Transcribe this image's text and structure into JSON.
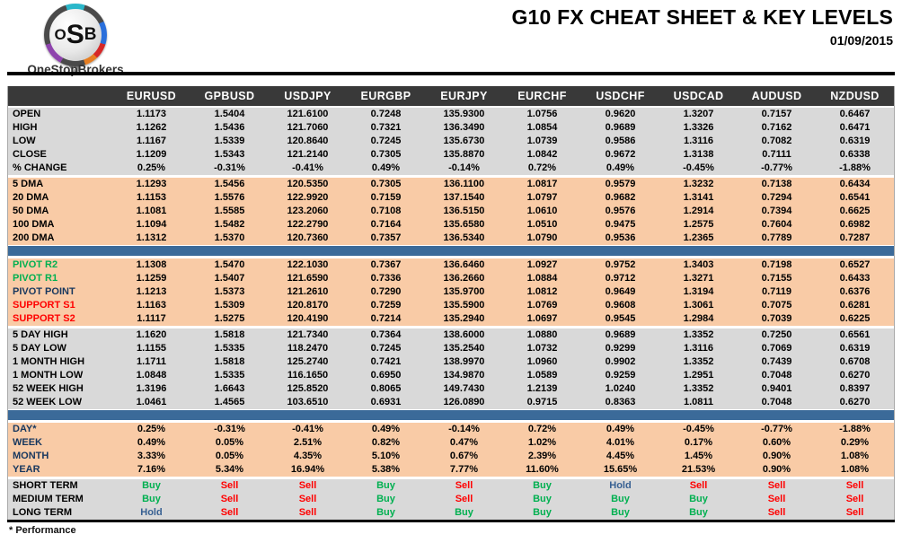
{
  "brand": {
    "logo_initials": "OSB",
    "logo_name": "OneStopBrokers"
  },
  "masthead": {
    "title": "G10 FX CHEAT SHEET & KEY LEVELS",
    "date": "01/09/2015"
  },
  "footer": {
    "note": "* Performance"
  },
  "colors": {
    "header_bg": "#393939",
    "gray_band": "#D9D9D9",
    "peach_band": "#F9CBA6",
    "blue_divider": "#3B6A99",
    "buy": "#00B050",
    "sell": "#FF0000",
    "hold": "#376092",
    "pivot_label_green": "#00B050",
    "support_label_red": "#FF0000",
    "navy_label": "#17375E"
  },
  "table": {
    "columns": [
      "EURUSD",
      "GPBUSD",
      "USDJPY",
      "EURGBP",
      "EURJPY",
      "EURCHF",
      "USDCHF",
      "USDCAD",
      "AUDUSD",
      "NZDUSD"
    ],
    "sections": [
      {
        "id": "ohlc",
        "tone": "gray",
        "rows": [
          {
            "label": "OPEN",
            "values": [
              "1.1173",
              "1.5404",
              "121.6100",
              "0.7248",
              "135.9300",
              "1.0756",
              "0.9620",
              "1.3207",
              "0.7157",
              "0.6467"
            ]
          },
          {
            "label": "HIGH",
            "values": [
              "1.1262",
              "1.5436",
              "121.7060",
              "0.7321",
              "136.3490",
              "1.0854",
              "0.9689",
              "1.3326",
              "0.7162",
              "0.6471"
            ]
          },
          {
            "label": "LOW",
            "values": [
              "1.1167",
              "1.5339",
              "120.8640",
              "0.7245",
              "135.6730",
              "1.0739",
              "0.9586",
              "1.3116",
              "0.7082",
              "0.6319"
            ]
          },
          {
            "label": "CLOSE",
            "values": [
              "1.1209",
              "1.5343",
              "121.2140",
              "0.7305",
              "135.8870",
              "1.0842",
              "0.9672",
              "1.3138",
              "0.7111",
              "0.6338"
            ]
          },
          {
            "label": "% CHANGE",
            "values": [
              "0.25%",
              "-0.31%",
              "-0.41%",
              "0.49%",
              "-0.14%",
              "0.72%",
              "0.49%",
              "-0.45%",
              "-0.77%",
              "-1.88%"
            ]
          }
        ]
      },
      {
        "id": "dma",
        "tone": "peach",
        "divider_after": true,
        "rows": [
          {
            "label": "5 DMA",
            "values": [
              "1.1293",
              "1.5456",
              "120.5350",
              "0.7305",
              "136.1100",
              "1.0817",
              "0.9579",
              "1.3232",
              "0.7138",
              "0.6434"
            ]
          },
          {
            "label": "20 DMA",
            "values": [
              "1.1153",
              "1.5576",
              "122.9920",
              "0.7159",
              "137.1540",
              "1.0797",
              "0.9682",
              "1.3141",
              "0.7294",
              "0.6541"
            ]
          },
          {
            "label": "50 DMA",
            "values": [
              "1.1081",
              "1.5585",
              "123.2060",
              "0.7108",
              "136.5150",
              "1.0610",
              "0.9576",
              "1.2914",
              "0.7394",
              "0.6625"
            ]
          },
          {
            "label": "100 DMA",
            "values": [
              "1.1094",
              "1.5482",
              "122.2790",
              "0.7164",
              "135.6580",
              "1.0510",
              "0.9475",
              "1.2575",
              "0.7604",
              "0.6982"
            ]
          },
          {
            "label": "200 DMA",
            "values": [
              "1.1312",
              "1.5370",
              "120.7360",
              "0.7357",
              "136.5340",
              "1.0790",
              "0.9536",
              "1.2365",
              "0.7789",
              "0.7287"
            ]
          }
        ]
      },
      {
        "id": "pivots",
        "tone": "peach",
        "rows": [
          {
            "label": "PIVOT R2",
            "label_color": "#00B050",
            "values": [
              "1.1308",
              "1.5470",
              "122.1030",
              "0.7367",
              "136.6460",
              "1.0927",
              "0.9752",
              "1.3403",
              "0.7198",
              "0.6527"
            ]
          },
          {
            "label": "PIVOT R1",
            "label_color": "#00B050",
            "values": [
              "1.1259",
              "1.5407",
              "121.6590",
              "0.7336",
              "136.2660",
              "1.0884",
              "0.9712",
              "1.3271",
              "0.7155",
              "0.6433"
            ]
          },
          {
            "label": "PIVOT POINT",
            "label_color": "#17375E",
            "values": [
              "1.1213",
              "1.5373",
              "121.2610",
              "0.7290",
              "135.9700",
              "1.0812",
              "0.9649",
              "1.3194",
              "0.7119",
              "0.6376"
            ]
          },
          {
            "label": "SUPPORT S1",
            "label_color": "#FF0000",
            "values": [
              "1.1163",
              "1.5309",
              "120.8170",
              "0.7259",
              "135.5900",
              "1.0769",
              "0.9608",
              "1.3061",
              "0.7075",
              "0.6281"
            ]
          },
          {
            "label": "SUPPORT S2",
            "label_color": "#FF0000",
            "values": [
              "1.1117",
              "1.5275",
              "120.4190",
              "0.7214",
              "135.2940",
              "1.0697",
              "0.9545",
              "1.2984",
              "0.7039",
              "0.6225"
            ]
          }
        ]
      },
      {
        "id": "ranges",
        "tone": "gray",
        "divider_after": true,
        "rows": [
          {
            "label": "5 DAY HIGH",
            "values": [
              "1.1620",
              "1.5818",
              "121.7340",
              "0.7364",
              "138.6000",
              "1.0880",
              "0.9689",
              "1.3352",
              "0.7250",
              "0.6561"
            ]
          },
          {
            "label": "5 DAY LOW",
            "values": [
              "1.1155",
              "1.5335",
              "118.2470",
              "0.7245",
              "135.2540",
              "1.0732",
              "0.9299",
              "1.3116",
              "0.7069",
              "0.6319"
            ]
          },
          {
            "label": "1 MONTH HIGH",
            "values": [
              "1.1711",
              "1.5818",
              "125.2740",
              "0.7421",
              "138.9970",
              "1.0960",
              "0.9902",
              "1.3352",
              "0.7439",
              "0.6708"
            ]
          },
          {
            "label": "1 MONTH LOW",
            "values": [
              "1.0848",
              "1.5335",
              "116.1650",
              "0.6950",
              "134.9870",
              "1.0589",
              "0.9259",
              "1.2951",
              "0.7048",
              "0.6270"
            ]
          },
          {
            "label": "52 WEEK HIGH",
            "values": [
              "1.3196",
              "1.6643",
              "125.8520",
              "0.8065",
              "149.7430",
              "1.2139",
              "1.0240",
              "1.3352",
              "0.9401",
              "0.8397"
            ]
          },
          {
            "label": "52 WEEK LOW",
            "values": [
              "1.0461",
              "1.4565",
              "103.6510",
              "0.6931",
              "126.0890",
              "0.9715",
              "0.8363",
              "1.0811",
              "0.7048",
              "0.6270"
            ]
          }
        ]
      },
      {
        "id": "performance",
        "tone": "peach",
        "rows": [
          {
            "label": "DAY*",
            "label_color": "#17375E",
            "values": [
              "0.25%",
              "-0.31%",
              "-0.41%",
              "0.49%",
              "-0.14%",
              "0.72%",
              "0.49%",
              "-0.45%",
              "-0.77%",
              "-1.88%"
            ]
          },
          {
            "label": "WEEK",
            "label_color": "#17375E",
            "values": [
              "0.49%",
              "0.05%",
              "2.51%",
              "0.82%",
              "0.47%",
              "1.02%",
              "4.01%",
              "0.17%",
              "0.60%",
              "0.29%"
            ]
          },
          {
            "label": "MONTH",
            "label_color": "#17375E",
            "values": [
              "3.33%",
              "0.05%",
              "4.35%",
              "5.10%",
              "0.67%",
              "2.39%",
              "4.45%",
              "1.45%",
              "0.90%",
              "1.08%"
            ]
          },
          {
            "label": "YEAR",
            "label_color": "#17375E",
            "values": [
              "7.16%",
              "5.34%",
              "16.94%",
              "5.38%",
              "7.77%",
              "11.60%",
              "15.65%",
              "21.53%",
              "0.90%",
              "1.08%"
            ]
          }
        ]
      },
      {
        "id": "signals",
        "tone": "gray",
        "signal": true,
        "rows": [
          {
            "label": "SHORT TERM",
            "values": [
              "Buy",
              "Sell",
              "Sell",
              "Buy",
              "Sell",
              "Buy",
              "Hold",
              "Sell",
              "Sell",
              "Sell"
            ]
          },
          {
            "label": "MEDIUM TERM",
            "values": [
              "Buy",
              "Sell",
              "Sell",
              "Buy",
              "Sell",
              "Buy",
              "Buy",
              "Buy",
              "Sell",
              "Sell"
            ]
          },
          {
            "label": "LONG TERM",
            "values": [
              "Hold",
              "Sell",
              "Sell",
              "Buy",
              "Buy",
              "Buy",
              "Buy",
              "Buy",
              "Sell",
              "Sell"
            ]
          }
        ]
      }
    ]
  }
}
